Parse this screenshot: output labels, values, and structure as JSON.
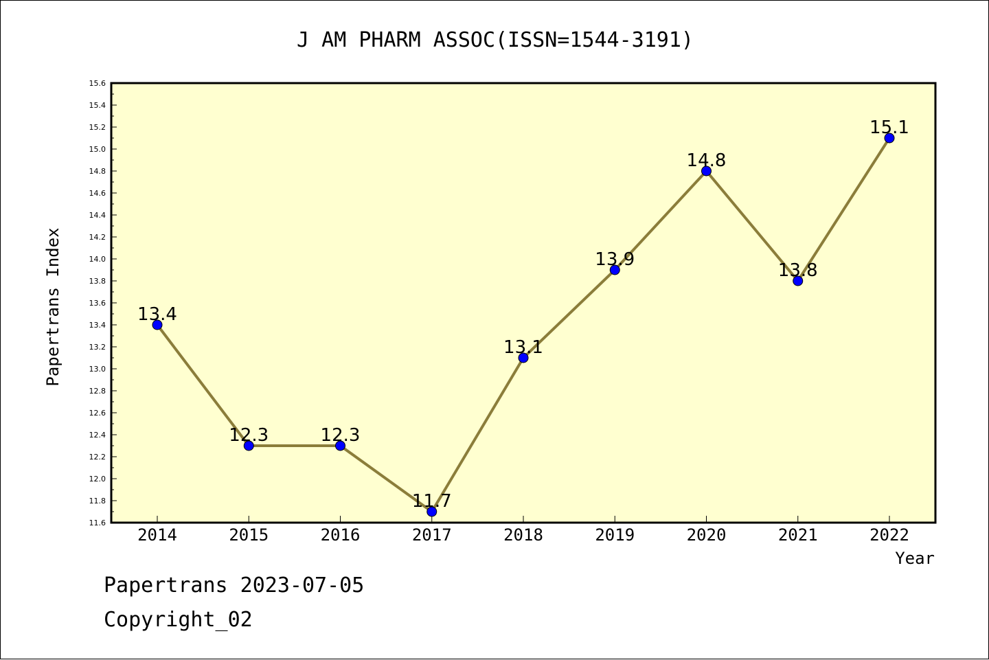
{
  "chart_data": {
    "type": "line",
    "title": "J AM PHARM ASSOC(ISSN=1544-3191)",
    "xlabel": "Year",
    "ylabel": "Papertrans Index",
    "categories": [
      "2014",
      "2015",
      "2016",
      "2017",
      "2018",
      "2019",
      "2020",
      "2021",
      "2022"
    ],
    "series": [
      {
        "values": [
          13.4,
          12.3,
          12.3,
          11.7,
          13.1,
          13.9,
          14.8,
          13.8,
          15.1
        ]
      }
    ],
    "data_labels": [
      "13.4",
      "12.3",
      "12.3",
      "11.7",
      "13.1",
      "13.9",
      "14.8",
      "13.8",
      "15.1"
    ],
    "ylim": [
      11.6,
      15.6
    ],
    "yticks": [
      "11.6",
      "11.8",
      "12.0",
      "12.2",
      "12.4",
      "12.6",
      "12.8",
      "13.0",
      "13.2",
      "13.4",
      "13.6",
      "13.8",
      "14.0",
      "14.2",
      "14.4",
      "14.6",
      "14.8",
      "15.0",
      "15.2",
      "15.4",
      "15.6"
    ],
    "grid": false,
    "colors": {
      "plot_background": "#ffffd0",
      "line": "#8b7d3a",
      "marker": "#0000ff"
    }
  },
  "footer": {
    "line1": "Papertrans 2023-07-05",
    "line2": "Copyright_02"
  }
}
